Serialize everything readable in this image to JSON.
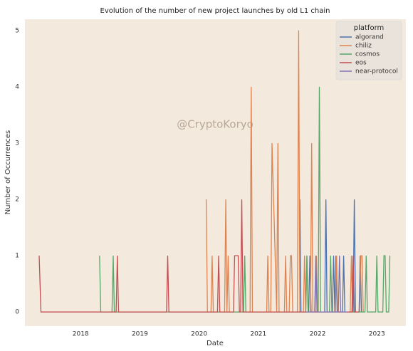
{
  "chart_data": {
    "type": "line",
    "title": "Evolution of the number of new project launches by old L1 chain",
    "x_label": "Date",
    "y_label": "Number of Occurrences",
    "annotation": "@CryptoKoryo",
    "legend_title": "platform",
    "legend_loc": "upper right",
    "xlim": [
      2017.06,
      2023.49
    ],
    "xticks": [
      2018,
      2019,
      2020,
      2021,
      2022,
      2023
    ],
    "ylim": [
      -0.25,
      5.2
    ],
    "yticks": [
      0,
      1,
      2,
      3,
      4,
      5
    ],
    "grid": false,
    "series": [
      {
        "name": "algorand",
        "color": "#4c72b0",
        "x": [
          2021.7,
          2021.72,
          2021.85,
          2021.87,
          2021.89,
          2022.12,
          2022.14,
          2022.16,
          2022.25,
          2022.27,
          2022.29,
          2022.31,
          2022.33,
          2022.42,
          2022.44,
          2022.46,
          2022.6,
          2022.62,
          2022.64,
          2022.7,
          2022.72,
          2022.74
        ],
        "values": [
          2,
          0,
          0,
          1,
          0,
          0,
          2,
          0,
          0,
          1,
          0,
          1,
          0,
          0,
          1,
          0,
          0,
          2,
          0,
          0,
          1,
          0
        ]
      },
      {
        "name": "chiliz",
        "color": "#dd8452",
        "x": [
          2020.12,
          2020.14,
          2020.2,
          2020.22,
          2020.24,
          2020.43,
          2020.45,
          2020.47,
          2020.49,
          2020.51,
          2020.53,
          2020.86,
          2020.88,
          2020.9,
          2021.14,
          2021.16,
          2021.18,
          2021.21,
          2021.23,
          2021.31,
          2021.33,
          2021.35,
          2021.44,
          2021.46,
          2021.48,
          2021.52,
          2021.54,
          2021.56,
          2021.58,
          2021.66,
          2021.68,
          2021.7,
          2021.76,
          2021.78,
          2021.8,
          2021.82,
          2021.84,
          2021.88,
          2021.9,
          2021.92,
          2021.96,
          2021.98,
          2022.0,
          2022.3,
          2022.32,
          2022.34,
          2022.55,
          2022.57,
          2022.59,
          2022.71,
          2022.73,
          2022.75,
          2022.77
        ],
        "values": [
          2,
          0,
          0,
          1,
          0,
          0,
          2,
          0,
          1,
          0,
          0,
          0,
          4,
          0,
          0,
          1,
          0,
          0,
          3,
          0,
          3,
          0,
          0,
          1,
          0,
          0,
          1,
          1,
          0,
          0,
          5,
          0,
          0,
          1,
          0,
          1,
          0,
          0,
          3,
          0,
          0,
          1,
          0,
          0,
          1,
          0,
          0,
          1,
          0,
          0,
          1,
          1,
          0
        ]
      },
      {
        "name": "cosmos",
        "color": "#55a868",
        "x": [
          2018.32,
          2018.34,
          2018.53,
          2018.55,
          2018.57,
          2020.75,
          2020.77,
          2020.79,
          2021.8,
          2021.82,
          2021.84,
          2022.01,
          2022.03,
          2022.05,
          2022.2,
          2022.22,
          2022.24,
          2022.8,
          2022.82,
          2022.84,
          2022.98,
          2023.0,
          2023.02,
          2023.1,
          2023.12,
          2023.14,
          2023.16,
          2023.2,
          2023.22
        ],
        "values": [
          1,
          0,
          0,
          1,
          0,
          0,
          1,
          0,
          0,
          1,
          0,
          0,
          4,
          0,
          0,
          1,
          0,
          0,
          1,
          0,
          0,
          1,
          0,
          0,
          1,
          1,
          0,
          0,
          1
        ]
      },
      {
        "name": "eos",
        "color": "#c44e52",
        "x": [
          2017.3,
          2017.33,
          2018.6,
          2018.62,
          2018.64,
          2019.45,
          2019.47,
          2019.49,
          2020.31,
          2020.33,
          2020.35,
          2020.58,
          2020.6,
          2020.66,
          2020.68,
          2020.7,
          2020.72,
          2020.74,
          2022.58,
          2022.6,
          2022.62,
          2022.7
        ],
        "values": [
          1,
          0,
          0,
          1,
          0,
          0,
          1,
          0,
          0,
          1,
          0,
          0,
          1,
          1,
          0,
          0,
          2,
          0,
          0,
          1,
          0,
          0
        ]
      },
      {
        "name": "near-protocol",
        "color": "#8172b3",
        "x": [
          2021.8,
          2021.95,
          2021.97,
          2021.99,
          2022.35,
          2022.37,
          2022.39,
          2022.5
        ],
        "values": [
          0,
          0,
          1,
          0,
          0,
          1,
          0,
          0
        ]
      }
    ]
  }
}
